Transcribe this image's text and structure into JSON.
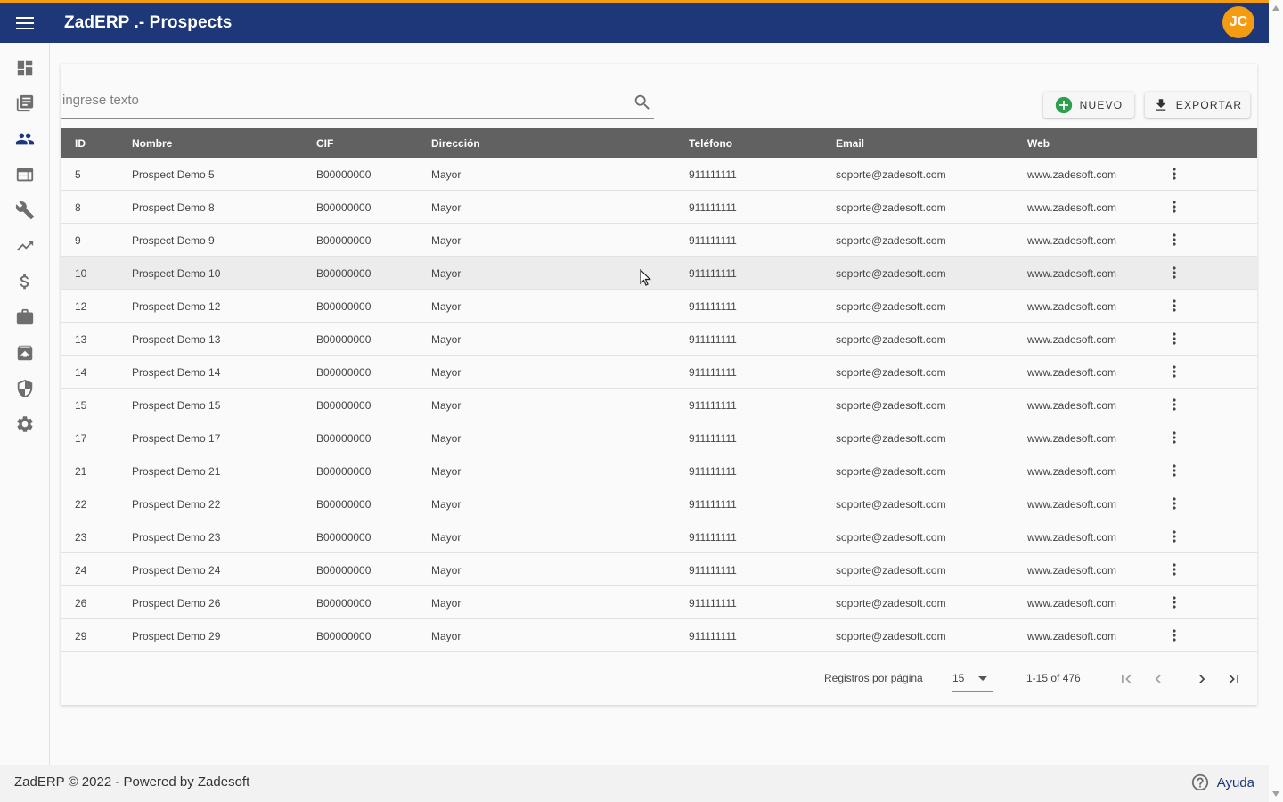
{
  "app": {
    "title": "ZadERP .- Prospects",
    "user_initials": "JC",
    "brand_color": "#1d3778",
    "accent_color": "#f39c12"
  },
  "sidebar": {
    "items": [
      {
        "icon": "dashboard-icon"
      },
      {
        "icon": "library-books-icon"
      },
      {
        "icon": "people-icon",
        "active": true
      },
      {
        "icon": "web-icon"
      },
      {
        "icon": "wrench-icon"
      },
      {
        "icon": "trending-up-icon"
      },
      {
        "icon": "dollar-icon"
      },
      {
        "icon": "briefcase-icon"
      },
      {
        "icon": "archive-icon"
      },
      {
        "icon": "shield-icon"
      },
      {
        "icon": "gear-icon"
      }
    ]
  },
  "search": {
    "placeholder": "ingrese texto",
    "value": ""
  },
  "toolbar": {
    "nuevo_label": "NUEVO",
    "exportar_label": "EXPORTAR"
  },
  "table": {
    "columns": [
      "ID",
      "Nombre",
      "CIF",
      "Dirección",
      "Teléfono",
      "Email",
      "Web"
    ],
    "rows": [
      [
        "5",
        "Prospect Demo 5",
        "B00000000",
        "Mayor",
        "911111111",
        "soporte@zadesoft.com",
        "www.zadesoft.com"
      ],
      [
        "8",
        "Prospect Demo 8",
        "B00000000",
        "Mayor",
        "911111111",
        "soporte@zadesoft.com",
        "www.zadesoft.com"
      ],
      [
        "9",
        "Prospect Demo 9",
        "B00000000",
        "Mayor",
        "911111111",
        "soporte@zadesoft.com",
        "www.zadesoft.com"
      ],
      [
        "10",
        "Prospect Demo 10",
        "B00000000",
        "Mayor",
        "911111111",
        "soporte@zadesoft.com",
        "www.zadesoft.com"
      ],
      [
        "12",
        "Prospect Demo 12",
        "B00000000",
        "Mayor",
        "911111111",
        "soporte@zadesoft.com",
        "www.zadesoft.com"
      ],
      [
        "13",
        "Prospect Demo 13",
        "B00000000",
        "Mayor",
        "911111111",
        "soporte@zadesoft.com",
        "www.zadesoft.com"
      ],
      [
        "14",
        "Prospect Demo 14",
        "B00000000",
        "Mayor",
        "911111111",
        "soporte@zadesoft.com",
        "www.zadesoft.com"
      ],
      [
        "15",
        "Prospect Demo 15",
        "B00000000",
        "Mayor",
        "911111111",
        "soporte@zadesoft.com",
        "www.zadesoft.com"
      ],
      [
        "17",
        "Prospect Demo 17",
        "B00000000",
        "Mayor",
        "911111111",
        "soporte@zadesoft.com",
        "www.zadesoft.com"
      ],
      [
        "21",
        "Prospect Demo 21",
        "B00000000",
        "Mayor",
        "911111111",
        "soporte@zadesoft.com",
        "www.zadesoft.com"
      ],
      [
        "22",
        "Prospect Demo 22",
        "B00000000",
        "Mayor",
        "911111111",
        "soporte@zadesoft.com",
        "www.zadesoft.com"
      ],
      [
        "23",
        "Prospect Demo 23",
        "B00000000",
        "Mayor",
        "911111111",
        "soporte@zadesoft.com",
        "www.zadesoft.com"
      ],
      [
        "24",
        "Prospect Demo 24",
        "B00000000",
        "Mayor",
        "911111111",
        "soporte@zadesoft.com",
        "www.zadesoft.com"
      ],
      [
        "26",
        "Prospect Demo 26",
        "B00000000",
        "Mayor",
        "911111111",
        "soporte@zadesoft.com",
        "www.zadesoft.com"
      ],
      [
        "29",
        "Prospect Demo 29",
        "B00000000",
        "Mayor",
        "911111111",
        "soporte@zadesoft.com",
        "www.zadesoft.com"
      ]
    ],
    "hovered_row_id": "10"
  },
  "paginator": {
    "per_page_label": "Registros por página",
    "per_page_value": "15",
    "range_label": "1-15 of 476"
  },
  "footer": {
    "text": "ZadERP © 2022 - Powered by Zadesoft",
    "help_label": "Ayuda"
  }
}
